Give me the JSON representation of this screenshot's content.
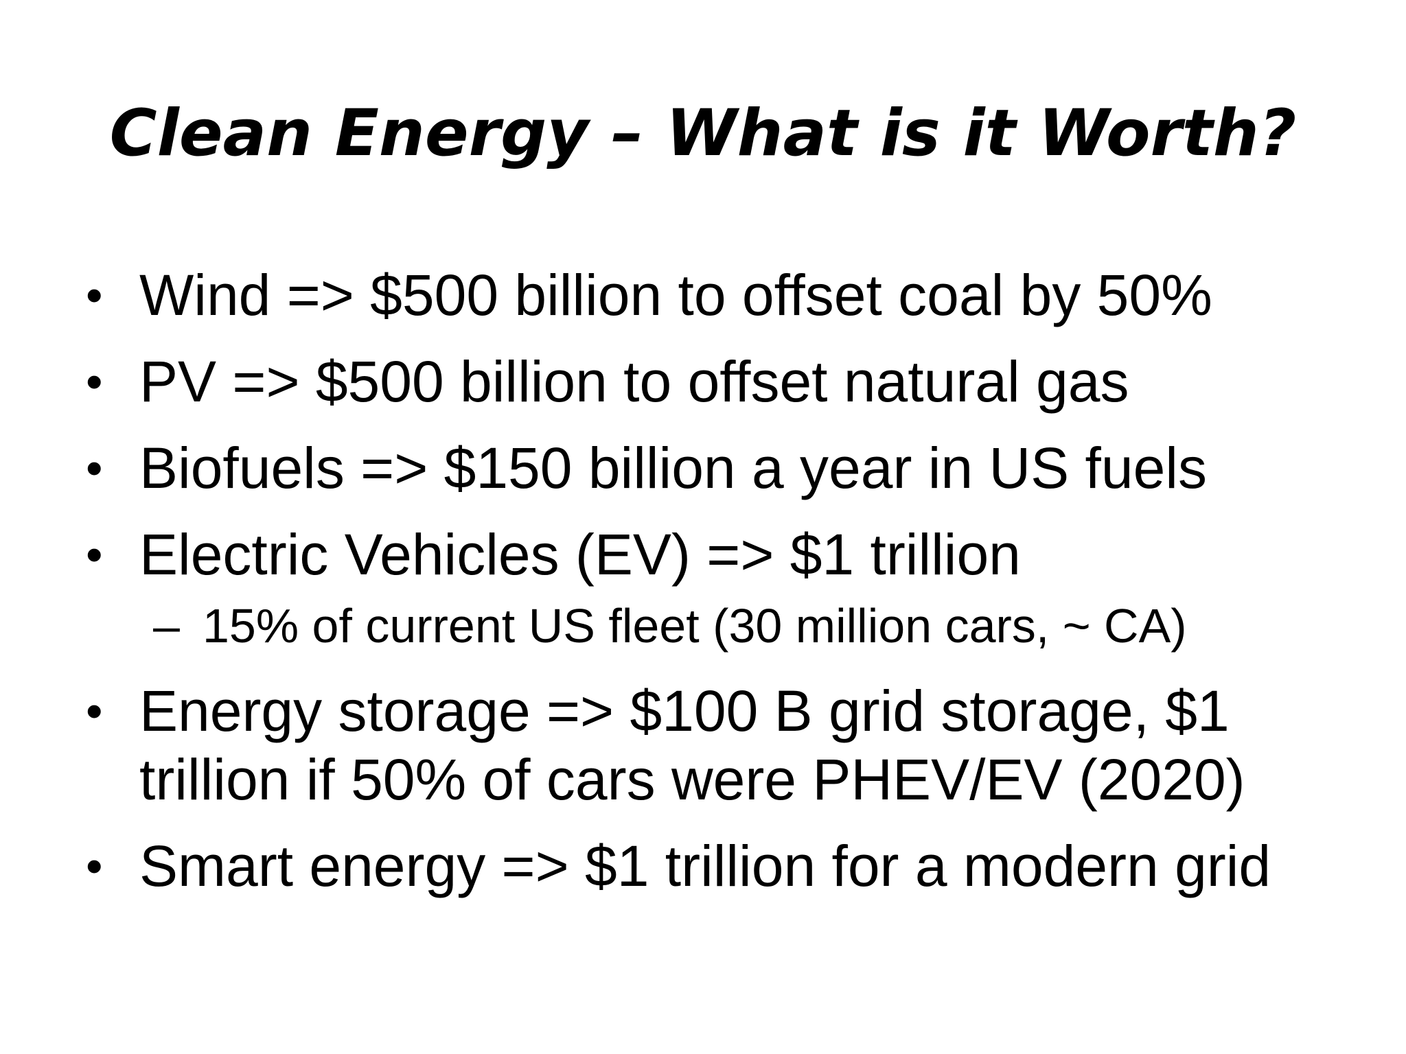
{
  "slide": {
    "title": "Clean Energy – What is it Worth?",
    "bullet_glyph": "•",
    "sub_bullet_glyph": "–",
    "bullets": [
      "Wind => $500 billion to offset coal by 50%",
      "PV => $500 billion to offset natural gas",
      "Biofuels => $150 billion a year in US fuels",
      "Electric Vehicles (EV) => $1 trillion",
      "Energy storage => $100 B grid storage, $1 trillion if 50% of cars were PHEV/EV (2020)",
      "Smart energy => $1 trillion for a modern grid"
    ],
    "sub_bullets": [
      "15% of current US fleet (30 million cars, ~ CA)"
    ]
  }
}
